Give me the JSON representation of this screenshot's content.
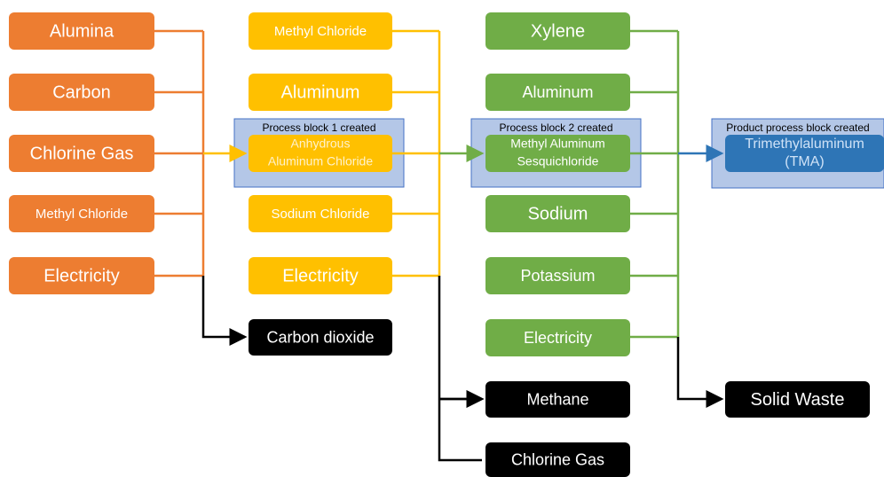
{
  "inputs_1": [
    "Alumina",
    "Carbon",
    "Chlorine Gas",
    "Methyl Chloride",
    "Electricity"
  ],
  "outputs_1": [
    "Carbon dioxide"
  ],
  "block_1": {
    "caption": "Process block 1 created",
    "lines": [
      "Anhydrous",
      "Aluminum Chloride"
    ]
  },
  "inputs_2": [
    "Methyl Chloride",
    "Aluminum",
    "Sodium Chloride",
    "Electricity"
  ],
  "outputs_2": [
    "Methane",
    "Chlorine Gas"
  ],
  "block_2": {
    "caption": "Process block 2 created",
    "lines": [
      "Methyl Aluminum",
      "Sesquichloride"
    ]
  },
  "inputs_3": [
    "Xylene",
    "Aluminum",
    "Sodium",
    "Potassium",
    "Electricity"
  ],
  "outputs_3": [
    "Solid Waste"
  ],
  "product": {
    "caption": "Product process block created",
    "lines": [
      "Trimethylaluminum",
      "(TMA)"
    ]
  }
}
